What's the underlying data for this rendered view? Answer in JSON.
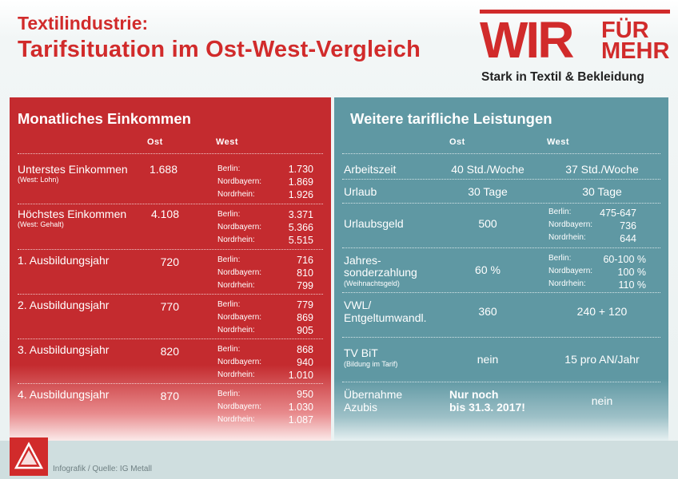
{
  "header": {
    "title_line1": "Textilindustrie:",
    "title_line2": "Tarifsituation im Ost-West-Vergleich"
  },
  "logo": {
    "wir": "WIR",
    "fuer": "FÜR",
    "mehr": "MEHR",
    "tagline": "Stark in Textil & Bekleidung"
  },
  "left_panel": {
    "title": "Monatliches Einkommen",
    "col_ost": "Ost",
    "col_west": "West",
    "rows": [
      {
        "label": "Unterstes Einkommen",
        "sub": "(West: Lohn)",
        "ost": "1.688",
        "west": [
          {
            "city": "Berlin:",
            "value": "1.730"
          },
          {
            "city": "Nordbayern:",
            "value": "1.869"
          },
          {
            "city": "Nordrhein:",
            "value": "1.926"
          }
        ]
      },
      {
        "label": "Höchstes Einkommen",
        "sub": "(West: Gehalt)",
        "ost": "4.108",
        "west": [
          {
            "city": "Berlin:",
            "value": "3.371"
          },
          {
            "city": "Nordbayern:",
            "value": "5.366"
          },
          {
            "city": "Nordrhein:",
            "value": "5.515"
          }
        ]
      },
      {
        "label": "1. Ausbildungsjahr",
        "sub": "",
        "ost": "720",
        "west": [
          {
            "city": "Berlin:",
            "value": "716"
          },
          {
            "city": "Nordbayern:",
            "value": "810"
          },
          {
            "city": "Nordrhein:",
            "value": "799"
          }
        ]
      },
      {
        "label": "2. Ausbildungsjahr",
        "sub": "",
        "ost": "770",
        "west": [
          {
            "city": "Berlin:",
            "value": "779"
          },
          {
            "city": "Nordbayern:",
            "value": "869"
          },
          {
            "city": "Nordrhein:",
            "value": "905"
          }
        ]
      },
      {
        "label": "3. Ausbildungsjahr",
        "sub": "",
        "ost": "820",
        "west": [
          {
            "city": "Berlin:",
            "value": "868"
          },
          {
            "city": "Nordbayern:",
            "value": "940"
          },
          {
            "city": "Nordrhein:",
            "value": "1.010"
          }
        ]
      },
      {
        "label": "4. Ausbildungsjahr",
        "sub": "",
        "ost": "870",
        "west": [
          {
            "city": "Berlin:",
            "value": "950"
          },
          {
            "city": "Nordbayern:",
            "value": "1.030"
          },
          {
            "city": "Nordrhein:",
            "value": "1.087"
          }
        ]
      }
    ]
  },
  "right_panel": {
    "title": "Weitere tarifliche Leistungen",
    "col_ost": "Ost",
    "col_west": "West",
    "rows": [
      {
        "label": "Arbeitszeit",
        "ost": "40 Std./Woche",
        "west": "37 Std./Woche"
      },
      {
        "label": "Urlaub",
        "ost": "30 Tage",
        "west": "30 Tage"
      },
      {
        "label": "Urlaubsgeld",
        "ost": "500",
        "west_detail": [
          {
            "city": "Berlin:",
            "value": "475-647"
          },
          {
            "city": "Nordbayern:",
            "value": "736"
          },
          {
            "city": "Nordrhein:",
            "value": "644"
          }
        ]
      },
      {
        "label_line1": "Jahres-",
        "label_line2": "sonderzahlung",
        "sub": "(Weihnachtsgeld)",
        "ost": "60 %",
        "west_detail": [
          {
            "city": "Berlin:",
            "value": "60-100 %"
          },
          {
            "city": "Nordbayern:",
            "value": "100 %"
          },
          {
            "city": "Nordrhein:",
            "value": "110 %"
          }
        ]
      },
      {
        "label_line1": "VWL/",
        "label_line2": "Entgeltumwandl.",
        "ost": "360",
        "west": "240 + 120"
      },
      {
        "label": "TV BiT",
        "sub": "(Bildung im Tarif)",
        "ost": "nein",
        "west": "15 pro AN/Jahr"
      },
      {
        "label_line1": "Übernahme",
        "label_line2": "Azubis",
        "ost_line1": "Nur noch",
        "ost_line2": "bis 31.3. 2017!",
        "west": "nein"
      }
    ]
  },
  "footer": {
    "igm_logo": "igm-logo",
    "source": "Infografik / Quelle: IG Metall"
  },
  "colors": {
    "red": "#c42b2f",
    "teal": "#5f98a3",
    "brand_red": "#d12b2b"
  }
}
